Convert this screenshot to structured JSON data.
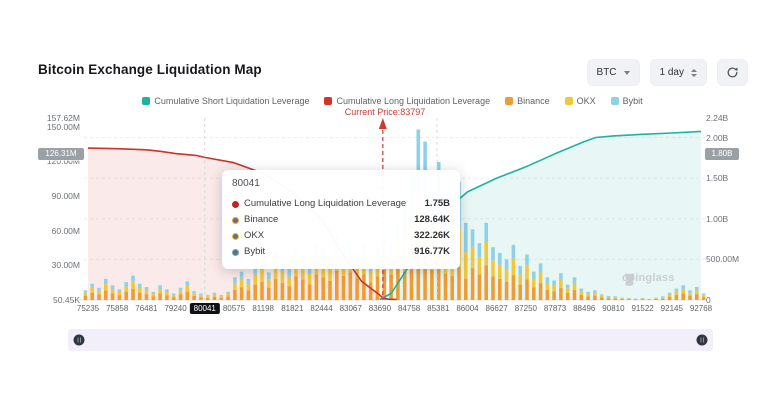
{
  "header": {
    "title": "Bitcoin Exchange Liquidation Map"
  },
  "controls": {
    "symbol": "BTC",
    "interval": "1 day",
    "refresh_icon": "refresh-icon"
  },
  "legend": [
    {
      "label": "Cumulative Short Liquidation Leverage",
      "color": "#1cb3a3"
    },
    {
      "label": "Cumulative Long Liquidation Leverage",
      "color": "#d2342c"
    },
    {
      "label": "Binance",
      "color": "#ef9d33"
    },
    {
      "label": "OKX",
      "color": "#f2c83a"
    },
    {
      "label": "Bybit",
      "color": "#8ed1e8"
    }
  ],
  "annotations": {
    "current_price_label": "Current Price:83797"
  },
  "tooltip": {
    "title": "80041",
    "rows": [
      {
        "label": "Cumulative Long Liquidation Leverage",
        "value": "1.75B",
        "color": "#b42b25",
        "ring": false
      },
      {
        "label": "Binance",
        "value": "128.64K",
        "color": "#ef9d33",
        "ring": true
      },
      {
        "label": "OKX",
        "value": "322.26K",
        "color": "#e3bb2f",
        "ring": true
      },
      {
        "label": "Bybit",
        "value": "916.77K",
        "color": "#5ba8c5",
        "ring": true
      }
    ]
  },
  "axes": {
    "left_max_M": 157.62,
    "left_ticks": [
      {
        "label": "157.62M",
        "value_M": 157.62
      },
      {
        "label": "150.00M",
        "value_M": 150.0
      },
      {
        "label": "120.00M",
        "value_M": 120.0
      },
      {
        "label": "90.00M",
        "value_M": 90.0
      },
      {
        "label": "60.00M",
        "value_M": 60.0
      },
      {
        "label": "30.00M",
        "value_M": 30.0
      },
      {
        "label": "50.45K",
        "value_M": 0.05
      }
    ],
    "left_badge": {
      "label": "126.31M",
      "value_M": 126.31
    },
    "right_max_M": 2240,
    "right_ticks": [
      {
        "label": "2.24B",
        "value_M": 2240
      },
      {
        "label": "2.00B",
        "value_M": 2000
      },
      {
        "label": "1.50B",
        "value_M": 1500
      },
      {
        "label": "1.00B",
        "value_M": 1000
      },
      {
        "label": "500.00M",
        "value_M": 500
      },
      {
        "label": "0",
        "value_M": 0
      }
    ],
    "right_badge": {
      "label": "1.80B",
      "value_M": 1800
    },
    "x_ticks": [
      "75235",
      "75858",
      "76481",
      "79240",
      "80041",
      "80575",
      "81198",
      "81821",
      "82444",
      "83067",
      "83690",
      "84758",
      "85381",
      "86004",
      "86627",
      "87250",
      "87873",
      "88496",
      "90810",
      "91522",
      "92145",
      "92768"
    ],
    "x_highlight": "80041"
  },
  "watermark": {
    "text": "coinglass"
  },
  "chart_data": {
    "type": "combo: stacked bar + two cumulative line-areas",
    "title": "Bitcoin Exchange Liquidation Map",
    "x_categories": [
      75235,
      75858,
      76481,
      79240,
      80041,
      80575,
      81198,
      81821,
      82444,
      83067,
      83690,
      84758,
      85381,
      86004,
      86627,
      87250,
      87873,
      88496,
      90810,
      91522,
      92145,
      92768
    ],
    "x_axis_note": "price bins (USD), categorical, evenly spaced; 80041 is the hovered bin (black crosshair badge)",
    "current_price": 83797,
    "right_axis_range_M": [
      0,
      2240
    ],
    "left_axis_range_M": [
      0.05,
      157.62
    ],
    "grid": "horizontal dashed lines at 2.00B / 1.50B / 1.00B / 500.00M",
    "legend_position": "top-center",
    "lines": [
      {
        "name": "Cumulative Long Liquidation Leverage",
        "color": "#c9342b",
        "area_fill": "rgba(208,52,44,0.10)",
        "axis": "right (M-equivalent)",
        "points_price_valueM": [
          [
            75235,
            1870
          ],
          [
            75858,
            1862
          ],
          [
            76481,
            1848
          ],
          [
            77800,
            1830
          ],
          [
            79240,
            1802
          ],
          [
            79800,
            1780
          ],
          [
            80041,
            1755
          ],
          [
            80575,
            1690
          ],
          [
            81198,
            1560
          ],
          [
            81821,
            1330
          ],
          [
            82444,
            1000
          ],
          [
            82900,
            560
          ],
          [
            83300,
            230
          ],
          [
            83690,
            60
          ],
          [
            83797,
            25
          ],
          [
            84000,
            10
          ],
          [
            84300,
            6
          ]
        ]
      },
      {
        "name": "Cumulative Short Liquidation Leverage",
        "color": "#1db3a0",
        "area_fill": "rgba(27,179,163,0.10)",
        "axis": "right (M-equivalent)",
        "points_price_valueM": [
          [
            83690,
            8
          ],
          [
            84100,
            80
          ],
          [
            84758,
            420
          ],
          [
            85100,
            680
          ],
          [
            85381,
            950
          ],
          [
            85700,
            1180
          ],
          [
            86004,
            1330
          ],
          [
            86627,
            1500
          ],
          [
            87250,
            1640
          ],
          [
            87873,
            1800
          ],
          [
            88496,
            1950
          ],
          [
            89400,
            2000
          ],
          [
            90810,
            2020
          ],
          [
            91522,
            2040
          ],
          [
            92145,
            2055
          ],
          [
            92768,
            2075
          ]
        ]
      }
    ],
    "bars": {
      "stack_order_bottom_to_top": [
        "Binance",
        "OKX",
        "Bybit"
      ],
      "colors": [
        "#ef9d33",
        "#f2c83a",
        "#8ed1e8"
      ],
      "unit": "M (right-axis equivalent height, estimated from pixels)",
      "values_M": [
        [
          54,
          36,
          30
        ],
        [
          90,
          60,
          50
        ],
        [
          68,
          45,
          37
        ],
        [
          117,
          78,
          65
        ],
        [
          81,
          54,
          45
        ],
        [
          59,
          39,
          32
        ],
        [
          99,
          66,
          55
        ],
        [
          135,
          90,
          75
        ],
        [
          90,
          60,
          50
        ],
        [
          72,
          48,
          40
        ],
        [
          45,
          30,
          25
        ],
        [
          81,
          54,
          45
        ],
        [
          59,
          39,
          32
        ],
        [
          36,
          24,
          20
        ],
        [
          68,
          45,
          37
        ],
        [
          104,
          69,
          57
        ],
        [
          50,
          33,
          27
        ],
        [
          36,
          24,
          20
        ],
        [
          27,
          18,
          15
        ],
        [
          41,
          27,
          22
        ],
        [
          27,
          18,
          15
        ],
        [
          45,
          30,
          25
        ],
        [
          126,
          84,
          70
        ],
        [
          158,
          105,
          87
        ],
        [
          117,
          78,
          65
        ],
        [
          189,
          126,
          105
        ],
        [
          225,
          150,
          125
        ],
        [
          153,
          102,
          85
        ],
        [
          261,
          174,
          145
        ],
        [
          212,
          141,
          117
        ],
        [
          171,
          114,
          95
        ],
        [
          293,
          195,
          162
        ],
        [
          252,
          168,
          140
        ],
        [
          194,
          129,
          107
        ],
        [
          315,
          210,
          175
        ],
        [
          279,
          186,
          155
        ],
        [
          234,
          156,
          130
        ],
        [
          360,
          240,
          200
        ],
        [
          297,
          198,
          165
        ],
        [
          338,
          225,
          187
        ],
        [
          266,
          177,
          147
        ],
        [
          315,
          210,
          175
        ],
        [
          216,
          144,
          120
        ],
        [
          293,
          195,
          162
        ],
        [
          369,
          246,
          205
        ],
        [
          315,
          210,
          175
        ],
        [
          428,
          285,
          237
        ],
        [
          350,
          425,
          475
        ],
        [
          448,
          544,
          608
        ],
        [
          588,
          714,
          798
        ],
        [
          546,
          663,
          741
        ],
        [
          378,
          459,
          513
        ],
        [
          476,
          578,
          646
        ],
        [
          322,
          391,
          437
        ],
        [
          294,
          357,
          399
        ],
        [
          406,
          493,
          551
        ],
        [
          266,
          323,
          361
        ],
        [
          392,
          261,
          217
        ],
        [
          315,
          210,
          175
        ],
        [
          428,
          285,
          237
        ],
        [
          293,
          195,
          162
        ],
        [
          261,
          174,
          145
        ],
        [
          225,
          150,
          125
        ],
        [
          306,
          204,
          170
        ],
        [
          189,
          126,
          105
        ],
        [
          252,
          168,
          140
        ],
        [
          158,
          105,
          87
        ],
        [
          203,
          135,
          112
        ],
        [
          126,
          84,
          70
        ],
        [
          108,
          72,
          60
        ],
        [
          149,
          99,
          82
        ],
        [
          86,
          57,
          47
        ],
        [
          126,
          84,
          70
        ],
        [
          63,
          42,
          35
        ],
        [
          45,
          30,
          25
        ],
        [
          54,
          36,
          30
        ],
        [
          32,
          21,
          17
        ],
        [
          23,
          15,
          12
        ],
        [
          20,
          14,
          11
        ],
        [
          14,
          9,
          7
        ],
        [
          11,
          8,
          6
        ],
        [
          9,
          6,
          5
        ],
        [
          11,
          8,
          6
        ],
        [
          7,
          5,
          3
        ],
        [
          14,
          9,
          7
        ],
        [
          20,
          14,
          11
        ],
        [
          41,
          27,
          22
        ],
        [
          63,
          42,
          35
        ],
        [
          81,
          54,
          45
        ],
        [
          54,
          36,
          30
        ],
        [
          72,
          48,
          40
        ],
        [
          36,
          24,
          20
        ]
      ]
    }
  }
}
